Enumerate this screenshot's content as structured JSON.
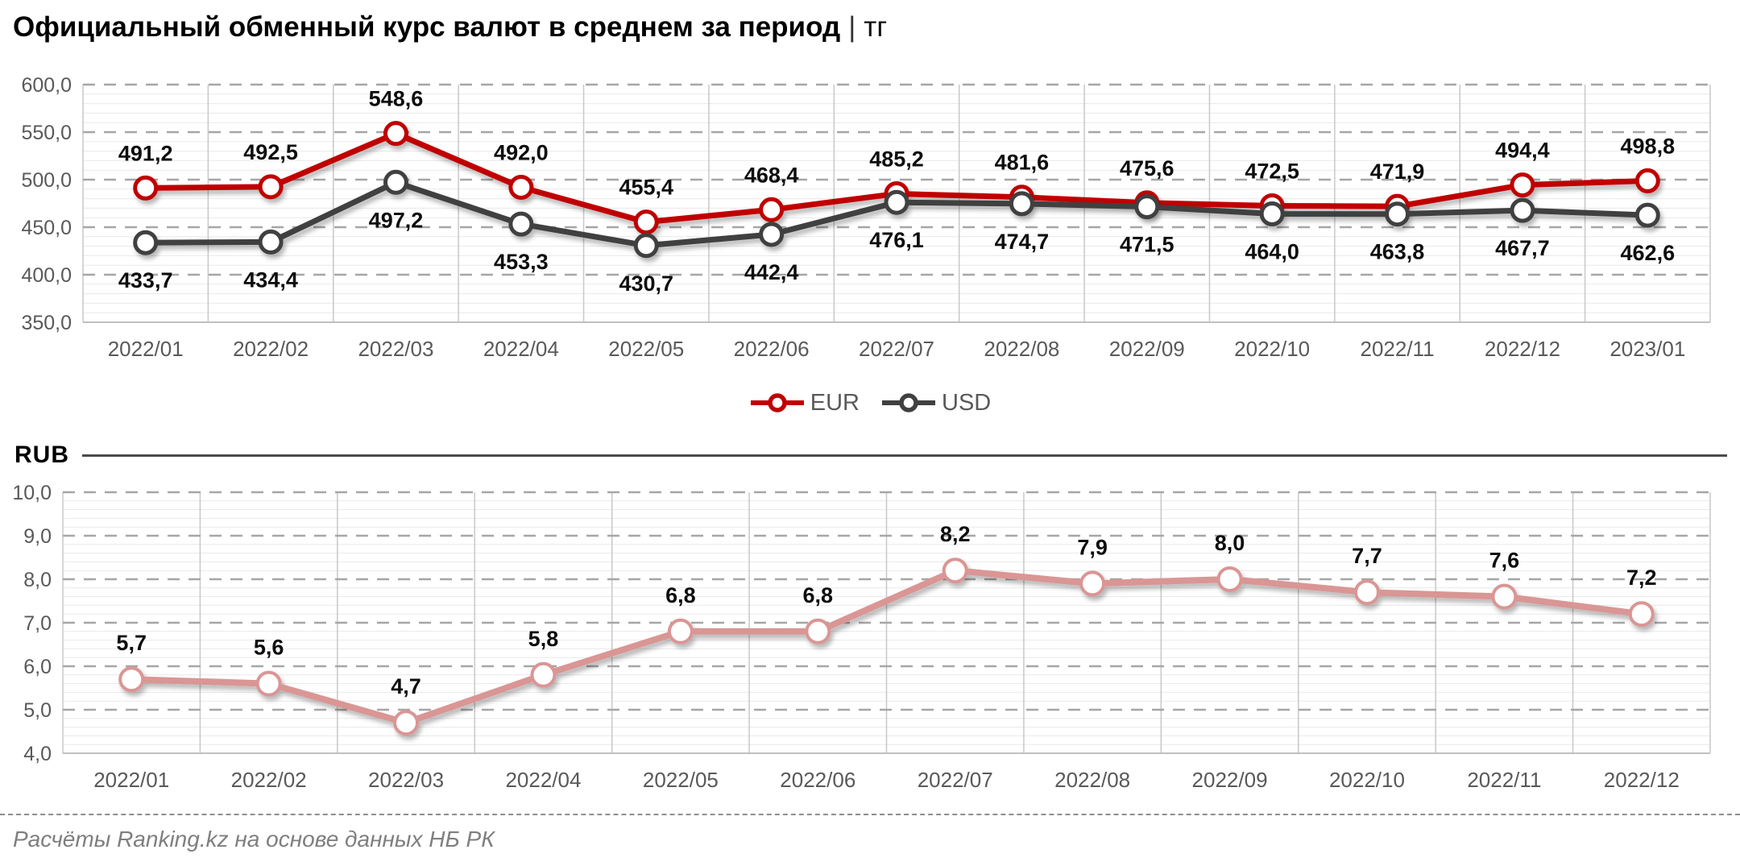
{
  "title": {
    "text": "Официальный обменный курс валют в среднем за период",
    "separator": "|",
    "unit": "тг"
  },
  "rub_section": {
    "label": "RUB"
  },
  "footer": {
    "text": "Расчёты Ranking.kz на основе данных НБ РК"
  },
  "colors": {
    "eur": "#C00000",
    "usd": "#404040",
    "rub": "#D99694",
    "grid_major": "#a6a6a6",
    "grid_minor": "#e9e9e9",
    "grid_vertical": "#c8c8c8",
    "tick_label": "#595959",
    "data_label": "#0d0d0d",
    "footer_text": "#7f7f7f"
  },
  "chart_data": [
    {
      "type": "line",
      "title": "Официальный обменный курс валют в среднем за период | тг",
      "categories": [
        "2022/01",
        "2022/02",
        "2022/03",
        "2022/04",
        "2022/05",
        "2022/06",
        "2022/07",
        "2022/08",
        "2022/09",
        "2022/10",
        "2022/11",
        "2022/12",
        "2023/01"
      ],
      "series": [
        {
          "name": "EUR",
          "color": "#C00000",
          "label_position": "above",
          "values": [
            491.2,
            492.5,
            548.6,
            492.0,
            455.4,
            468.4,
            485.2,
            481.6,
            475.6,
            472.5,
            471.9,
            494.4,
            498.8
          ]
        },
        {
          "name": "USD",
          "color": "#404040",
          "label_position": "below",
          "values": [
            433.7,
            434.4,
            497.2,
            453.3,
            430.7,
            442.4,
            476.1,
            474.7,
            471.5,
            464.0,
            463.8,
            467.7,
            462.6
          ]
        }
      ],
      "legend": [
        {
          "label": "EUR",
          "color": "#C00000"
        },
        {
          "label": "USD",
          "color": "#404040"
        }
      ],
      "legend_position": "bottom",
      "ylim": [
        350,
        600
      ],
      "ymajor": 50,
      "yminor": 10,
      "ydecimals": 1,
      "ytick_labels": [
        "350,0",
        "400,0",
        "450,0",
        "500,0",
        "550,0",
        "600,0"
      ],
      "grid": true
    },
    {
      "type": "line",
      "title": "RUB",
      "categories": [
        "2022/01",
        "2022/02",
        "2022/03",
        "2022/04",
        "2022/05",
        "2022/06",
        "2022/07",
        "2022/08",
        "2022/09",
        "2022/10",
        "2022/11",
        "2022/12"
      ],
      "series": [
        {
          "name": "RUB",
          "color": "#D99694",
          "label_position": "above",
          "values": [
            5.7,
            5.6,
            4.7,
            5.8,
            6.8,
            6.8,
            8.2,
            7.9,
            8.0,
            7.7,
            7.6,
            7.2
          ]
        }
      ],
      "legend_position": "none",
      "ylim": [
        4,
        10
      ],
      "ymajor": 1,
      "yminor": 0.2,
      "ydecimals": 1,
      "ytick_labels": [
        "4,0",
        "5,0",
        "6,0",
        "7,0",
        "8,0",
        "9,0",
        "10,0"
      ],
      "grid": true
    }
  ]
}
